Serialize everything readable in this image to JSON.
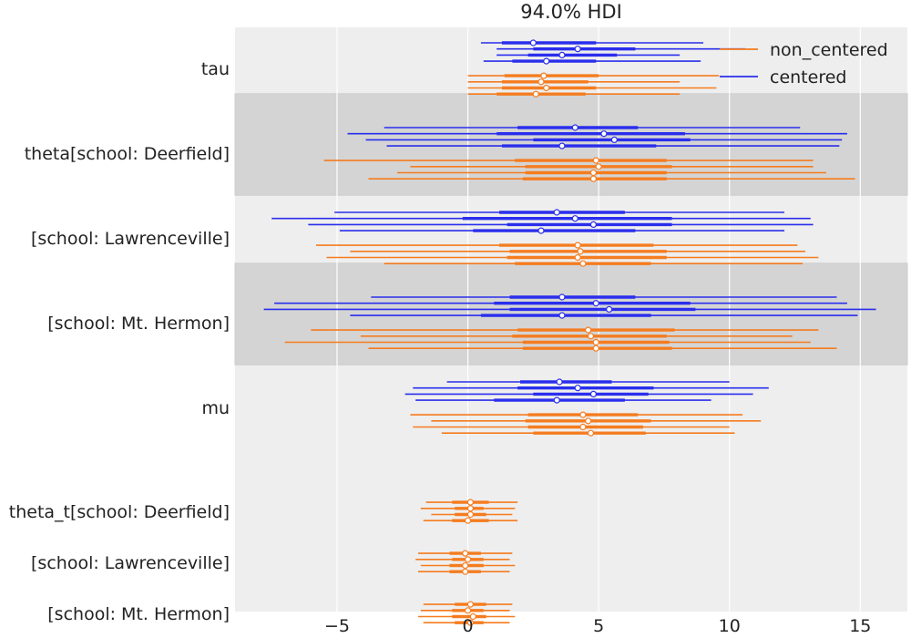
{
  "chart_data": {
    "type": "forest",
    "title": "94.0% HDI",
    "xlabel": "",
    "ylabel": "",
    "xlim": [
      -8.9,
      16.8
    ],
    "xticks": [
      -5,
      0,
      5,
      10,
      15
    ],
    "xtick_labels": [
      "−5",
      "0",
      "5",
      "10",
      "15"
    ],
    "grid": true,
    "legend_position": "top-right",
    "colors": {
      "non_centered": "#f57c1f",
      "centered": "#2a2eec",
      "panel_bg": "#eeeeee",
      "band_bg": "#d4d4d4",
      "grid": "#ffffff"
    },
    "legend": [
      {
        "name": "non_centered",
        "color_key": "non_centered"
      },
      {
        "name": "centered",
        "color_key": "centered"
      }
    ],
    "variables": [
      {
        "label": "tau",
        "band": false,
        "series": [
          {
            "model": "centered",
            "chains": [
              {
                "hdi": [
                  0.5,
                  9.0
                ],
                "iqr": [
                  1.3,
                  4.9
                ],
                "median": 2.5
              },
              {
                "hdi": [
                  1.1,
                  10.6
                ],
                "iqr": [
                  2.5,
                  6.4
                ],
                "median": 4.2
              },
              {
                "hdi": [
                  1.1,
                  8.1
                ],
                "iqr": [
                  2.3,
                  5.7
                ],
                "median": 3.6
              },
              {
                "hdi": [
                  0.6,
                  8.9
                ],
                "iqr": [
                  1.7,
                  4.9
                ],
                "median": 3.0
              }
            ]
          },
          {
            "model": "non_centered",
            "chains": [
              {
                "hdi": [
                  0.0,
                  9.6
                ],
                "iqr": [
                  1.4,
                  5.0
                ],
                "median": 2.9
              },
              {
                "hdi": [
                  0.0,
                  8.1
                ],
                "iqr": [
                  1.3,
                  4.6
                ],
                "median": 2.8
              },
              {
                "hdi": [
                  0.0,
                  9.5
                ],
                "iqr": [
                  1.3,
                  4.9
                ],
                "median": 3.0
              },
              {
                "hdi": [
                  0.0,
                  8.1
                ],
                "iqr": [
                  1.1,
                  4.5
                ],
                "median": 2.6
              }
            ]
          }
        ]
      },
      {
        "label": "theta[school: Deerfield]",
        "band": true,
        "series": [
          {
            "model": "centered",
            "chains": [
              {
                "hdi": [
                  -3.2,
                  12.7
                ],
                "iqr": [
                  1.9,
                  6.5
                ],
                "median": 4.1
              },
              {
                "hdi": [
                  -4.6,
                  14.5
                ],
                "iqr": [
                  1.1,
                  8.3
                ],
                "median": 5.2
              },
              {
                "hdi": [
                  -3.9,
                  14.3
                ],
                "iqr": [
                  2.5,
                  8.5
                ],
                "median": 5.6
              },
              {
                "hdi": [
                  -3.1,
                  14.2
                ],
                "iqr": [
                  1.3,
                  7.2
                ],
                "median": 3.6
              }
            ]
          },
          {
            "model": "non_centered",
            "chains": [
              {
                "hdi": [
                  -5.5,
                  13.2
                ],
                "iqr": [
                  1.8,
                  7.6
                ],
                "median": 4.9
              },
              {
                "hdi": [
                  -2.2,
                  13.2
                ],
                "iqr": [
                  2.2,
                  7.8
                ],
                "median": 5.0
              },
              {
                "hdi": [
                  -2.7,
                  13.7
                ],
                "iqr": [
                  2.2,
                  7.6
                ],
                "median": 4.8
              },
              {
                "hdi": [
                  -3.8,
                  14.8
                ],
                "iqr": [
                  2.1,
                  7.6
                ],
                "median": 4.8
              }
            ]
          }
        ]
      },
      {
        "label": "[school: Lawrenceville]",
        "band": false,
        "series": [
          {
            "model": "centered",
            "chains": [
              {
                "hdi": [
                  -5.1,
                  12.1
                ],
                "iqr": [
                  1.2,
                  6.0
                ],
                "median": 3.4
              },
              {
                "hdi": [
                  -7.5,
                  13.1
                ],
                "iqr": [
                  -0.2,
                  7.8
                ],
                "median": 4.1
              },
              {
                "hdi": [
                  -6.1,
                  13.2
                ],
                "iqr": [
                  1.5,
                  7.8
                ],
                "median": 4.8
              },
              {
                "hdi": [
                  -4.9,
                  12.1
                ],
                "iqr": [
                  0.2,
                  6.4
                ],
                "median": 2.8
              }
            ]
          },
          {
            "model": "non_centered",
            "chains": [
              {
                "hdi": [
                  -5.8,
                  12.6
                ],
                "iqr": [
                  1.2,
                  7.1
                ],
                "median": 4.2
              },
              {
                "hdi": [
                  -4.5,
                  12.9
                ],
                "iqr": [
                  1.6,
                  7.6
                ],
                "median": 4.3
              },
              {
                "hdi": [
                  -5.4,
                  13.4
                ],
                "iqr": [
                  1.5,
                  7.6
                ],
                "median": 4.2
              },
              {
                "hdi": [
                  -3.2,
                  12.8
                ],
                "iqr": [
                  1.8,
                  7.0
                ],
                "median": 4.4
              }
            ]
          }
        ]
      },
      {
        "label": "[school: Mt. Hermon]",
        "band": true,
        "series": [
          {
            "model": "centered",
            "chains": [
              {
                "hdi": [
                  -3.7,
                  14.1
                ],
                "iqr": [
                  1.6,
                  6.4
                ],
                "median": 3.6
              },
              {
                "hdi": [
                  -7.4,
                  14.5
                ],
                "iqr": [
                  1.0,
                  8.5
                ],
                "median": 4.9
              },
              {
                "hdi": [
                  -7.8,
                  15.6
                ],
                "iqr": [
                  1.6,
                  8.7
                ],
                "median": 5.4
              },
              {
                "hdi": [
                  -4.5,
                  14.9
                ],
                "iqr": [
                  0.5,
                  7.0
                ],
                "median": 3.6
              }
            ]
          },
          {
            "model": "non_centered",
            "chains": [
              {
                "hdi": [
                  -6.0,
                  13.4
                ],
                "iqr": [
                  1.9,
                  7.9
                ],
                "median": 4.6
              },
              {
                "hdi": [
                  -4.1,
                  12.4
                ],
                "iqr": [
                  1.7,
                  7.6
                ],
                "median": 4.7
              },
              {
                "hdi": [
                  -7.0,
                  13.1
                ],
                "iqr": [
                  2.1,
                  7.7
                ],
                "median": 4.9
              },
              {
                "hdi": [
                  -3.8,
                  14.1
                ],
                "iqr": [
                  2.1,
                  7.8
                ],
                "median": 4.9
              }
            ]
          }
        ]
      },
      {
        "label": "mu",
        "band": false,
        "series": [
          {
            "model": "centered",
            "chains": [
              {
                "hdi": [
                  -0.8,
                  10.0
                ],
                "iqr": [
                  2.0,
                  5.5
                ],
                "median": 3.5
              },
              {
                "hdi": [
                  -2.1,
                  11.5
                ],
                "iqr": [
                  1.9,
                  7.1
                ],
                "median": 4.2
              },
              {
                "hdi": [
                  -2.4,
                  10.9
                ],
                "iqr": [
                  2.5,
                  6.9
                ],
                "median": 4.8
              },
              {
                "hdi": [
                  -2.0,
                  9.3
                ],
                "iqr": [
                  1.0,
                  6.0
                ],
                "median": 3.4
              }
            ]
          },
          {
            "model": "non_centered",
            "chains": [
              {
                "hdi": [
                  -2.2,
                  10.5
                ],
                "iqr": [
                  2.3,
                  6.5
                ],
                "median": 4.4
              },
              {
                "hdi": [
                  -1.4,
                  11.2
                ],
                "iqr": [
                  2.2,
                  7.0
                ],
                "median": 4.6
              },
              {
                "hdi": [
                  -2.1,
                  10.0
                ],
                "iqr": [
                  2.3,
                  6.7
                ],
                "median": 4.4
              },
              {
                "hdi": [
                  -1.0,
                  10.2
                ],
                "iqr": [
                  2.5,
                  6.8
                ],
                "median": 4.7
              }
            ]
          }
        ]
      },
      {
        "label": "theta_t[school: Deerfield]",
        "band": false,
        "series": [
          {
            "model": "non_centered",
            "chains": [
              {
                "hdi": [
                  -1.6,
                  1.9
                ],
                "iqr": [
                  -0.6,
                  0.8
                ],
                "median": 0.1
              },
              {
                "hdi": [
                  -1.8,
                  1.8
                ],
                "iqr": [
                  -0.5,
                  0.6
                ],
                "median": 0.1
              },
              {
                "hdi": [
                  -1.4,
                  1.7
                ],
                "iqr": [
                  -0.5,
                  0.7
                ],
                "median": 0.1
              },
              {
                "hdi": [
                  -1.7,
                  1.9
                ],
                "iqr": [
                  -0.6,
                  0.8
                ],
                "median": 0.0
              }
            ]
          }
        ]
      },
      {
        "label": "[school: Lawrenceville]",
        "band": false,
        "series": [
          {
            "model": "non_centered",
            "chains": [
              {
                "hdi": [
                  -1.9,
                  1.7
                ],
                "iqr": [
                  -0.7,
                  0.5
                ],
                "median": -0.1
              },
              {
                "hdi": [
                  -2.0,
                  1.6
                ],
                "iqr": [
                  -0.6,
                  0.6
                ],
                "median": 0.0
              },
              {
                "hdi": [
                  -1.8,
                  1.8
                ],
                "iqr": [
                  -0.7,
                  0.6
                ],
                "median": -0.1
              },
              {
                "hdi": [
                  -1.9,
                  1.6
                ],
                "iqr": [
                  -0.7,
                  0.5
                ],
                "median": -0.1
              }
            ]
          }
        ]
      },
      {
        "label": "[school: Mt. Hermon]",
        "band": false,
        "series": [
          {
            "model": "non_centered",
            "chains": [
              {
                "hdi": [
                  -1.7,
                  1.7
                ],
                "iqr": [
                  -0.5,
                  0.7
                ],
                "median": 0.1
              },
              {
                "hdi": [
                  -1.8,
                  1.6
                ],
                "iqr": [
                  -0.6,
                  0.6
                ],
                "median": 0.0
              },
              {
                "hdi": [
                  -1.9,
                  1.8
                ],
                "iqr": [
                  -0.6,
                  0.7
                ],
                "median": 0.2
              },
              {
                "hdi": [
                  -1.7,
                  1.6
                ],
                "iqr": [
                  -0.5,
                  0.6
                ],
                "median": 0.1
              }
            ]
          }
        ]
      }
    ]
  }
}
